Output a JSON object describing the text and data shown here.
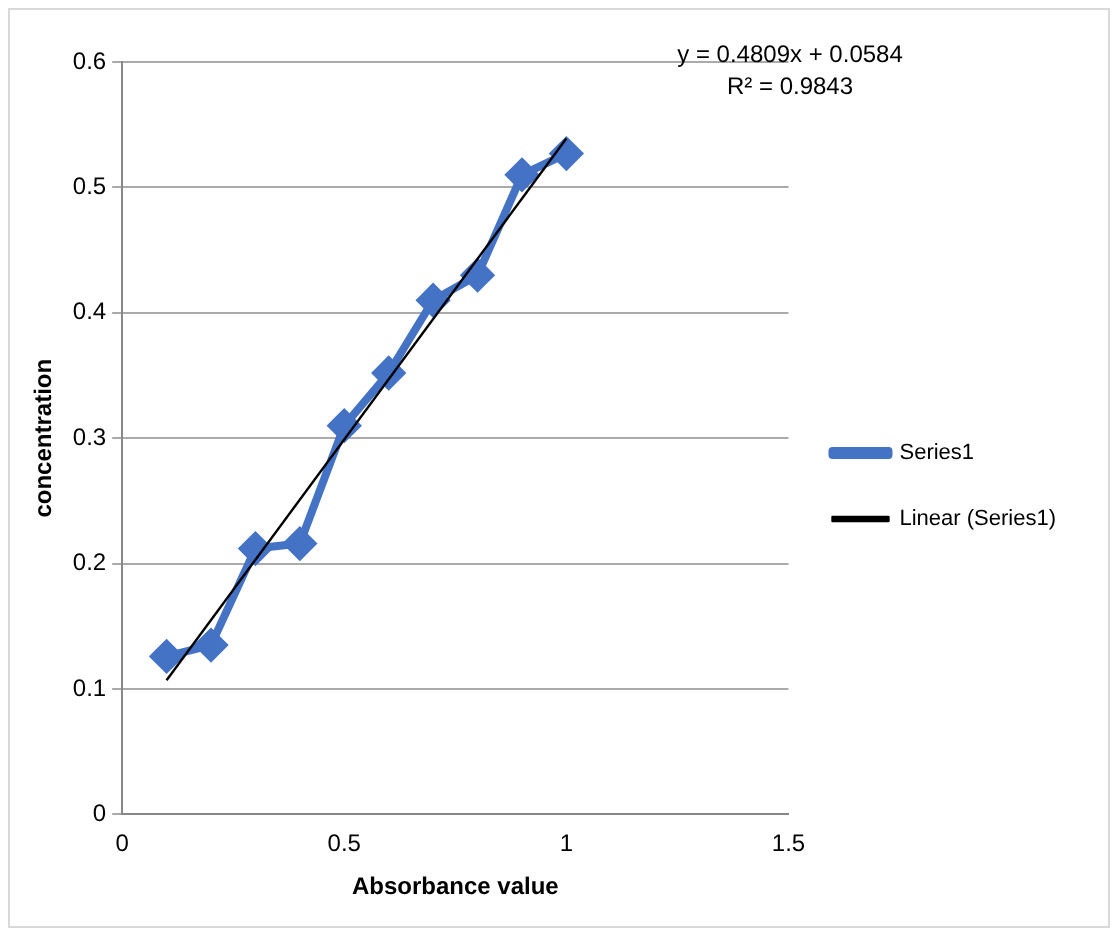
{
  "chart_data": {
    "type": "line",
    "xlabel": "Absorbance value",
    "ylabel": "concentration",
    "x": [
      0.1,
      0.2,
      0.3,
      0.4,
      0.5,
      0.6,
      0.7,
      0.8,
      0.9,
      1.0
    ],
    "series": [
      {
        "name": "Series1",
        "color": "#4472c4",
        "values": [
          0.126,
          0.135,
          0.212,
          0.216,
          0.31,
          0.352,
          0.41,
          0.43,
          0.51,
          0.527
        ],
        "marker": "diamond"
      },
      {
        "name": "Linear (Series1)",
        "color": "#000000",
        "type": "line",
        "x": [
          0.1,
          1.0
        ],
        "values": [
          0.107,
          0.539
        ],
        "marker": "none"
      }
    ],
    "xlim": [
      0,
      1.5
    ],
    "xticks": [
      0,
      0.5,
      1,
      1.5
    ],
    "ylim": [
      0,
      0.6
    ],
    "yticks": [
      0,
      0.1,
      0.2,
      0.3,
      0.4,
      0.5,
      0.6
    ],
    "grid": "y",
    "legend": "right",
    "annotations": [
      "y = 0.4809x + 0.0584",
      "R² = 0.9843"
    ]
  }
}
